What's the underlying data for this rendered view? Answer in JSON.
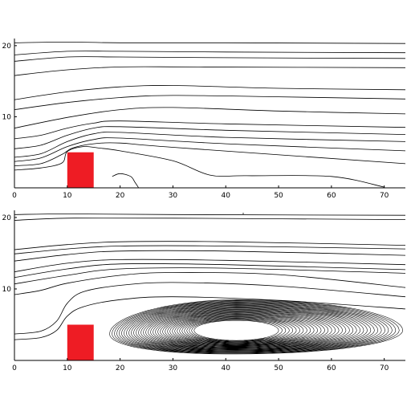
{
  "colors": {
    "obstacle": "#ee1c24",
    "line": "#000000",
    "background": "#ffffff"
  },
  "chart_data": [
    {
      "type": "streamline",
      "xlim": [
        0,
        74
      ],
      "ylim": [
        0,
        21
      ],
      "xticks": [
        0,
        10,
        20,
        30,
        40,
        50,
        60,
        70
      ],
      "yticks": [
        10,
        20
      ],
      "obstacle": {
        "x": [
          10,
          15
        ],
        "y": [
          0,
          5
        ]
      },
      "streamlines": [
        [
          [
            0,
            20.4
          ],
          [
            10,
            20.5
          ],
          [
            20,
            20.4
          ],
          [
            40,
            20.4
          ],
          [
            74,
            20.3
          ]
        ],
        [
          [
            0,
            18.7
          ],
          [
            10,
            19.2
          ],
          [
            20,
            19.2
          ],
          [
            40,
            19.1
          ],
          [
            74,
            19.0
          ]
        ],
        [
          [
            0,
            17.8
          ],
          [
            10,
            18.4
          ],
          [
            20,
            18.4
          ],
          [
            40,
            18.3
          ],
          [
            74,
            18.2
          ]
        ],
        [
          [
            0,
            15.8
          ],
          [
            10,
            16.6
          ],
          [
            20,
            17.0
          ],
          [
            35,
            17.0
          ],
          [
            74,
            16.9
          ]
        ],
        [
          [
            0,
            12.4
          ],
          [
            10,
            13.5
          ],
          [
            20,
            14.2
          ],
          [
            30,
            14.4
          ],
          [
            50,
            14.0
          ],
          [
            74,
            13.8
          ]
        ],
        [
          [
            0,
            11.0
          ],
          [
            10,
            12.0
          ],
          [
            20,
            12.7
          ],
          [
            30,
            13.0
          ],
          [
            50,
            12.8
          ],
          [
            74,
            12.5
          ]
        ],
        [
          [
            0,
            8.4
          ],
          [
            10,
            9.9
          ],
          [
            20,
            11.0
          ],
          [
            30,
            11.3
          ],
          [
            50,
            10.8
          ],
          [
            74,
            10.4
          ]
        ],
        [
          [
            0,
            6.9
          ],
          [
            5,
            7.4
          ],
          [
            10,
            8.4
          ],
          [
            15,
            9.1
          ],
          [
            20,
            9.4
          ],
          [
            40,
            9.0
          ],
          [
            74,
            8.5
          ]
        ],
        [
          [
            0,
            5.5
          ],
          [
            5,
            6.0
          ],
          [
            10,
            7.4
          ],
          [
            15,
            8.4
          ],
          [
            20,
            8.6
          ],
          [
            40,
            8.1
          ],
          [
            74,
            7.5
          ]
        ],
        [
          [
            0,
            4.3
          ],
          [
            5,
            4.8
          ],
          [
            10,
            6.5
          ],
          [
            15,
            7.6
          ],
          [
            20,
            7.8
          ],
          [
            40,
            7.1
          ],
          [
            74,
            6.5
          ]
        ],
        [
          [
            0,
            3.7
          ],
          [
            5,
            4.2
          ],
          [
            10,
            5.8
          ],
          [
            15,
            6.8
          ],
          [
            20,
            7.0
          ],
          [
            40,
            6.2
          ],
          [
            74,
            5.2
          ]
        ],
        [
          [
            0,
            3.1
          ],
          [
            5,
            3.4
          ],
          [
            9,
            4.7
          ],
          [
            11,
            5.6
          ],
          [
            15,
            6.2
          ],
          [
            20,
            6.3
          ],
          [
            30,
            5.7
          ],
          [
            74,
            3.4
          ]
        ],
        [
          [
            0,
            2.5
          ],
          [
            5,
            2.8
          ],
          [
            9,
            3.5
          ],
          [
            10,
            5.1
          ],
          [
            13,
            5.8
          ],
          [
            16,
            5.6
          ],
          [
            20,
            5.2
          ],
          [
            30,
            3.8
          ],
          [
            37,
            1.8
          ],
          [
            44,
            1.7
          ],
          [
            60,
            1.6
          ],
          [
            70,
            0.1
          ]
        ],
        [
          [
            18.5,
            1.6
          ],
          [
            20,
            2.0
          ],
          [
            22,
            1.6
          ],
          [
            22.8,
            0.8
          ],
          [
            23.5,
            0.0
          ]
        ]
      ],
      "eddy": null
    },
    {
      "type": "streamline",
      "xlim": [
        0,
        74
      ],
      "ylim": [
        0,
        21
      ],
      "xticks": [
        0,
        10,
        20,
        30,
        40,
        50,
        60,
        70
      ],
      "yticks": [
        10,
        20
      ],
      "obstacle": {
        "x": [
          10,
          15
        ],
        "y": [
          0,
          5
        ]
      },
      "streamlines": [
        [
          [
            0,
            20.4
          ],
          [
            10,
            20.5
          ],
          [
            30,
            20.4
          ],
          [
            74,
            20.3
          ]
        ],
        [
          [
            0,
            19.6
          ],
          [
            10,
            19.9
          ],
          [
            30,
            19.9
          ],
          [
            74,
            19.7
          ]
        ],
        [
          [
            0,
            15.5
          ],
          [
            10,
            16.2
          ],
          [
            20,
            16.6
          ],
          [
            40,
            16.6
          ],
          [
            74,
            16.1
          ]
        ],
        [
          [
            0,
            14.9
          ],
          [
            10,
            15.6
          ],
          [
            20,
            16.0
          ],
          [
            40,
            16.0
          ],
          [
            74,
            15.6
          ]
        ],
        [
          [
            0,
            13.9
          ],
          [
            10,
            14.8
          ],
          [
            20,
            15.3
          ],
          [
            40,
            15.3
          ],
          [
            74,
            14.7
          ]
        ],
        [
          [
            0,
            12.4
          ],
          [
            10,
            13.6
          ],
          [
            20,
            14.1
          ],
          [
            40,
            14.0
          ],
          [
            74,
            13.4
          ]
        ],
        [
          [
            0,
            11.6
          ],
          [
            10,
            12.8
          ],
          [
            20,
            13.5
          ],
          [
            40,
            13.4
          ],
          [
            74,
            12.7
          ]
        ],
        [
          [
            0,
            10.7
          ],
          [
            10,
            11.9
          ],
          [
            20,
            12.8
          ],
          [
            40,
            12.9
          ],
          [
            74,
            12.2
          ]
        ],
        [
          [
            0,
            9.2
          ],
          [
            5,
            9.8
          ],
          [
            10,
            10.8
          ],
          [
            20,
            11.9
          ],
          [
            30,
            12.3
          ],
          [
            50,
            12.0
          ],
          [
            74,
            10.2
          ]
        ],
        [
          [
            0,
            3.7
          ],
          [
            5,
            4.1
          ],
          [
            8,
            5.5
          ],
          [
            10,
            8.0
          ],
          [
            13,
            9.6
          ],
          [
            20,
            10.5
          ],
          [
            30,
            10.9
          ],
          [
            50,
            10.4
          ],
          [
            74,
            8.9
          ]
        ],
        [
          [
            0,
            2.9
          ],
          [
            5,
            3.2
          ],
          [
            8,
            4.2
          ],
          [
            10,
            6.2
          ],
          [
            13,
            7.5
          ],
          [
            20,
            8.5
          ],
          [
            30,
            8.9
          ],
          [
            50,
            8.4
          ],
          [
            74,
            7.2
          ]
        ]
      ],
      "eddy": {
        "center": [
          42,
          4.2
        ],
        "outer_x": [
          18,
          73.5
        ],
        "outer_y": [
          0.9,
          8.5
        ],
        "core_rx": 8,
        "core_ry": 1.4,
        "loops": 36
      }
    }
  ]
}
